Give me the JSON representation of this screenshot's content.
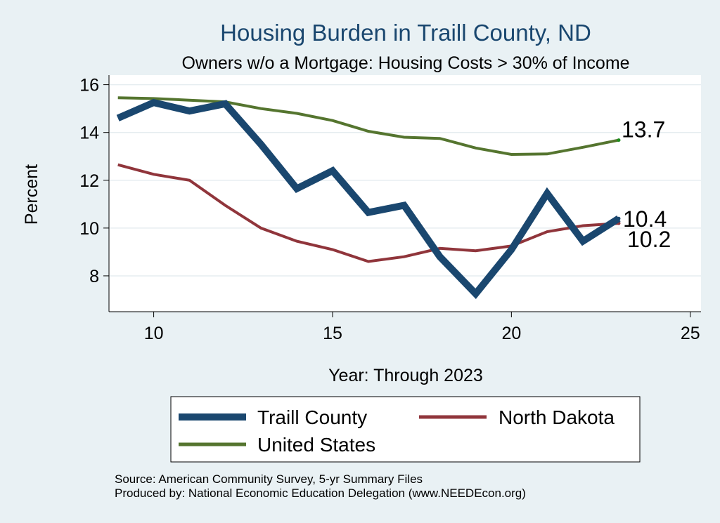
{
  "chart_data": {
    "type": "line",
    "title": "Housing Burden in Traill County, ND",
    "subtitle": "Owners w/o a Mortgage: Housing Costs > 30% of Income",
    "xlabel": "Year: Through 2023",
    "ylabel": "Percent",
    "xlim": [
      8.75,
      25.3
    ],
    "ylim": [
      6.5,
      16.4
    ],
    "xticks": [
      10,
      15,
      20,
      25
    ],
    "yticks": [
      8,
      10,
      12,
      14,
      16
    ],
    "grid": true,
    "legend_position": "bottom",
    "series": [
      {
        "name": "Traill County",
        "color": "#1a476f",
        "x": [
          9,
          10,
          11,
          12,
          13,
          14,
          15,
          16,
          17,
          18,
          19,
          20,
          21,
          22,
          23
        ],
        "values": [
          14.6,
          15.25,
          14.9,
          15.2,
          13.5,
          11.65,
          12.4,
          10.65,
          10.95,
          8.8,
          7.25,
          9.1,
          11.45,
          9.45,
          10.4
        ],
        "end_label": "10.4"
      },
      {
        "name": "North Dakota",
        "color": "#90353b",
        "x": [
          9,
          10,
          11,
          12,
          13,
          14,
          15,
          16,
          17,
          18,
          19,
          20,
          21,
          22,
          23
        ],
        "values": [
          12.65,
          12.25,
          12.0,
          10.95,
          10.0,
          9.45,
          9.1,
          8.6,
          8.8,
          9.15,
          9.05,
          9.25,
          9.85,
          10.1,
          10.2
        ],
        "end_label": "10.2"
      },
      {
        "name": "United States",
        "color": "#55752f",
        "x": [
          9,
          10,
          11,
          12,
          13,
          14,
          15,
          16,
          17,
          18,
          19,
          20,
          21,
          22,
          23
        ],
        "values": [
          15.45,
          15.42,
          15.35,
          15.28,
          15.0,
          14.8,
          14.5,
          14.05,
          13.8,
          13.75,
          13.35,
          13.08,
          13.1,
          13.38,
          13.68
        ],
        "end_label": "13.7"
      }
    ],
    "notes": [
      "Source: American Community Survey, 5-yr Summary Files",
      "Produced by: National Economic Education Delegation (www.NEEDEcon.org)"
    ]
  }
}
